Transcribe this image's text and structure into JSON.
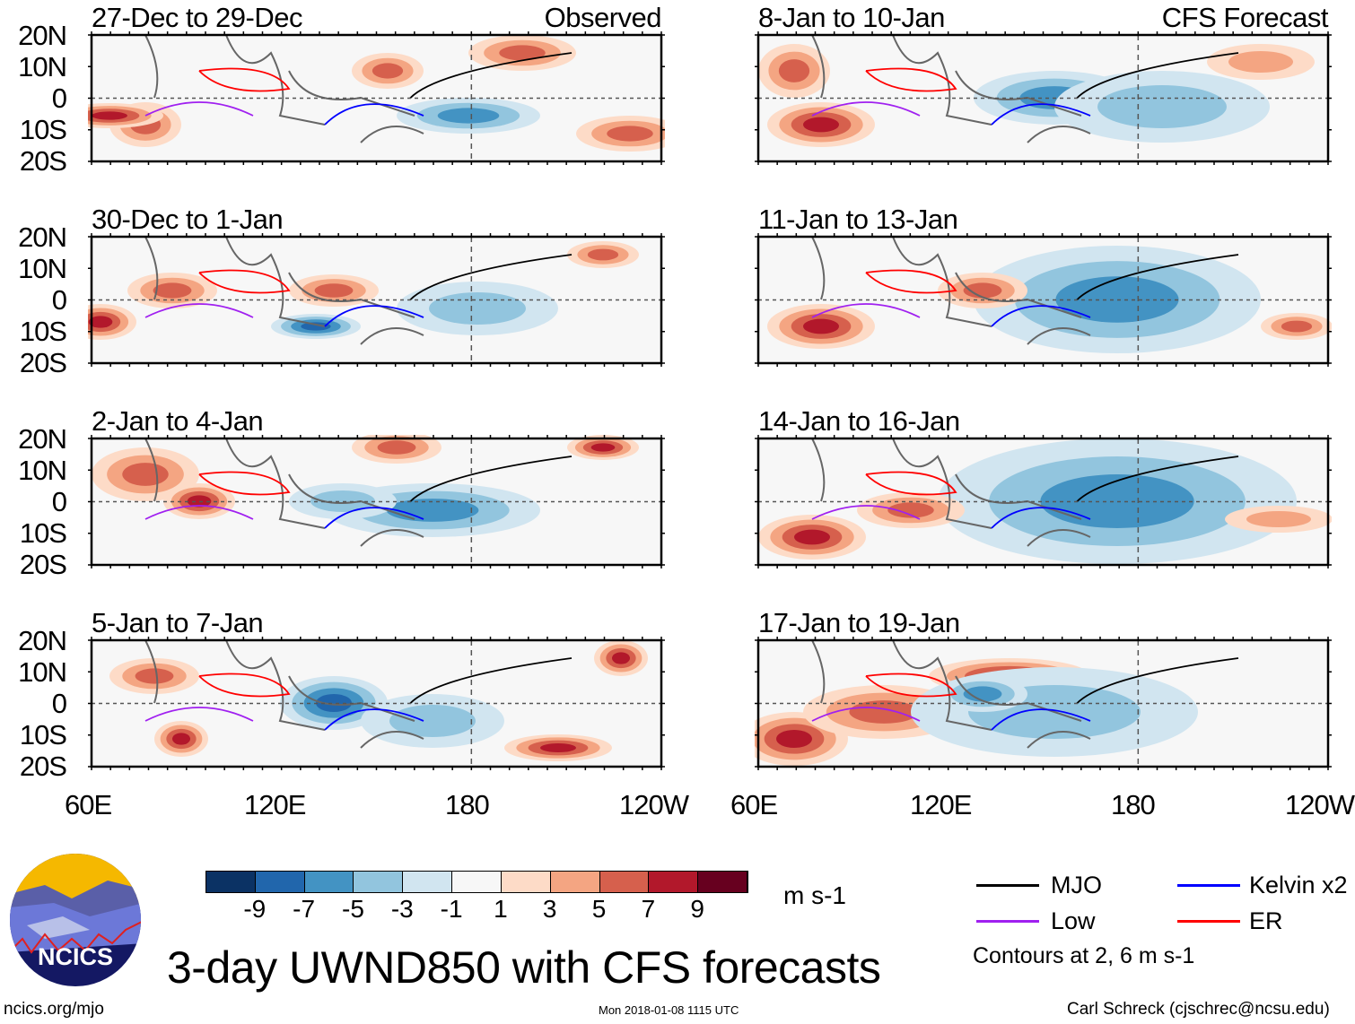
{
  "panels": [
    {
      "title": "27-Dec to 29-Dec",
      "tag": "Observed",
      "column": "left"
    },
    {
      "title": "30-Dec to 1-Jan",
      "tag": "",
      "column": "left"
    },
    {
      "title": "2-Jan to 4-Jan",
      "tag": "",
      "column": "left"
    },
    {
      "title": "5-Jan to 7-Jan",
      "tag": "",
      "column": "left"
    },
    {
      "title": "8-Jan to 10-Jan",
      "tag": "CFS Forecast",
      "column": "right"
    },
    {
      "title": "11-Jan to 13-Jan",
      "tag": "",
      "column": "right"
    },
    {
      "title": "14-Jan to 16-Jan",
      "tag": "",
      "column": "right"
    },
    {
      "title": "17-Jan to 19-Jan",
      "tag": "",
      "column": "right"
    }
  ],
  "lat_labels": [
    "20N",
    "10N",
    "0",
    "10S",
    "20S"
  ],
  "lon_labels": [
    "60E",
    "120E",
    "180",
    "120W"
  ],
  "colorbar": {
    "unit": "m s-1",
    "labels": [
      "-9",
      "-7",
      "-5",
      "-3",
      "-1",
      "1",
      "3",
      "5",
      "7",
      "9"
    ],
    "colors": [
      "#0b3264",
      "#2166ac",
      "#4393c3",
      "#92c5de",
      "#d1e5f0",
      "#f7f7f7",
      "#fddbc7",
      "#f4a582",
      "#d6604d",
      "#b2182b",
      "#67001f"
    ]
  },
  "legend": {
    "items": [
      {
        "label": "MJO",
        "color": "#000000"
      },
      {
        "label": "Kelvin x2",
        "color": "#0000ff"
      },
      {
        "label": "Low",
        "color": "#a020f0"
      },
      {
        "label": "ER",
        "color": "#ff0000"
      }
    ],
    "note": "Contours at 2, 6 m s-1"
  },
  "logo": {
    "text": "NCICS"
  },
  "title": "3-day UWND850 with CFS forecasts",
  "footer": {
    "url": "ncics.org/mjo",
    "timestamp": "Mon 2018-01-08 1115 UTC",
    "author": "Carl Schreck (cjschrec@ncsu.edu)"
  }
}
